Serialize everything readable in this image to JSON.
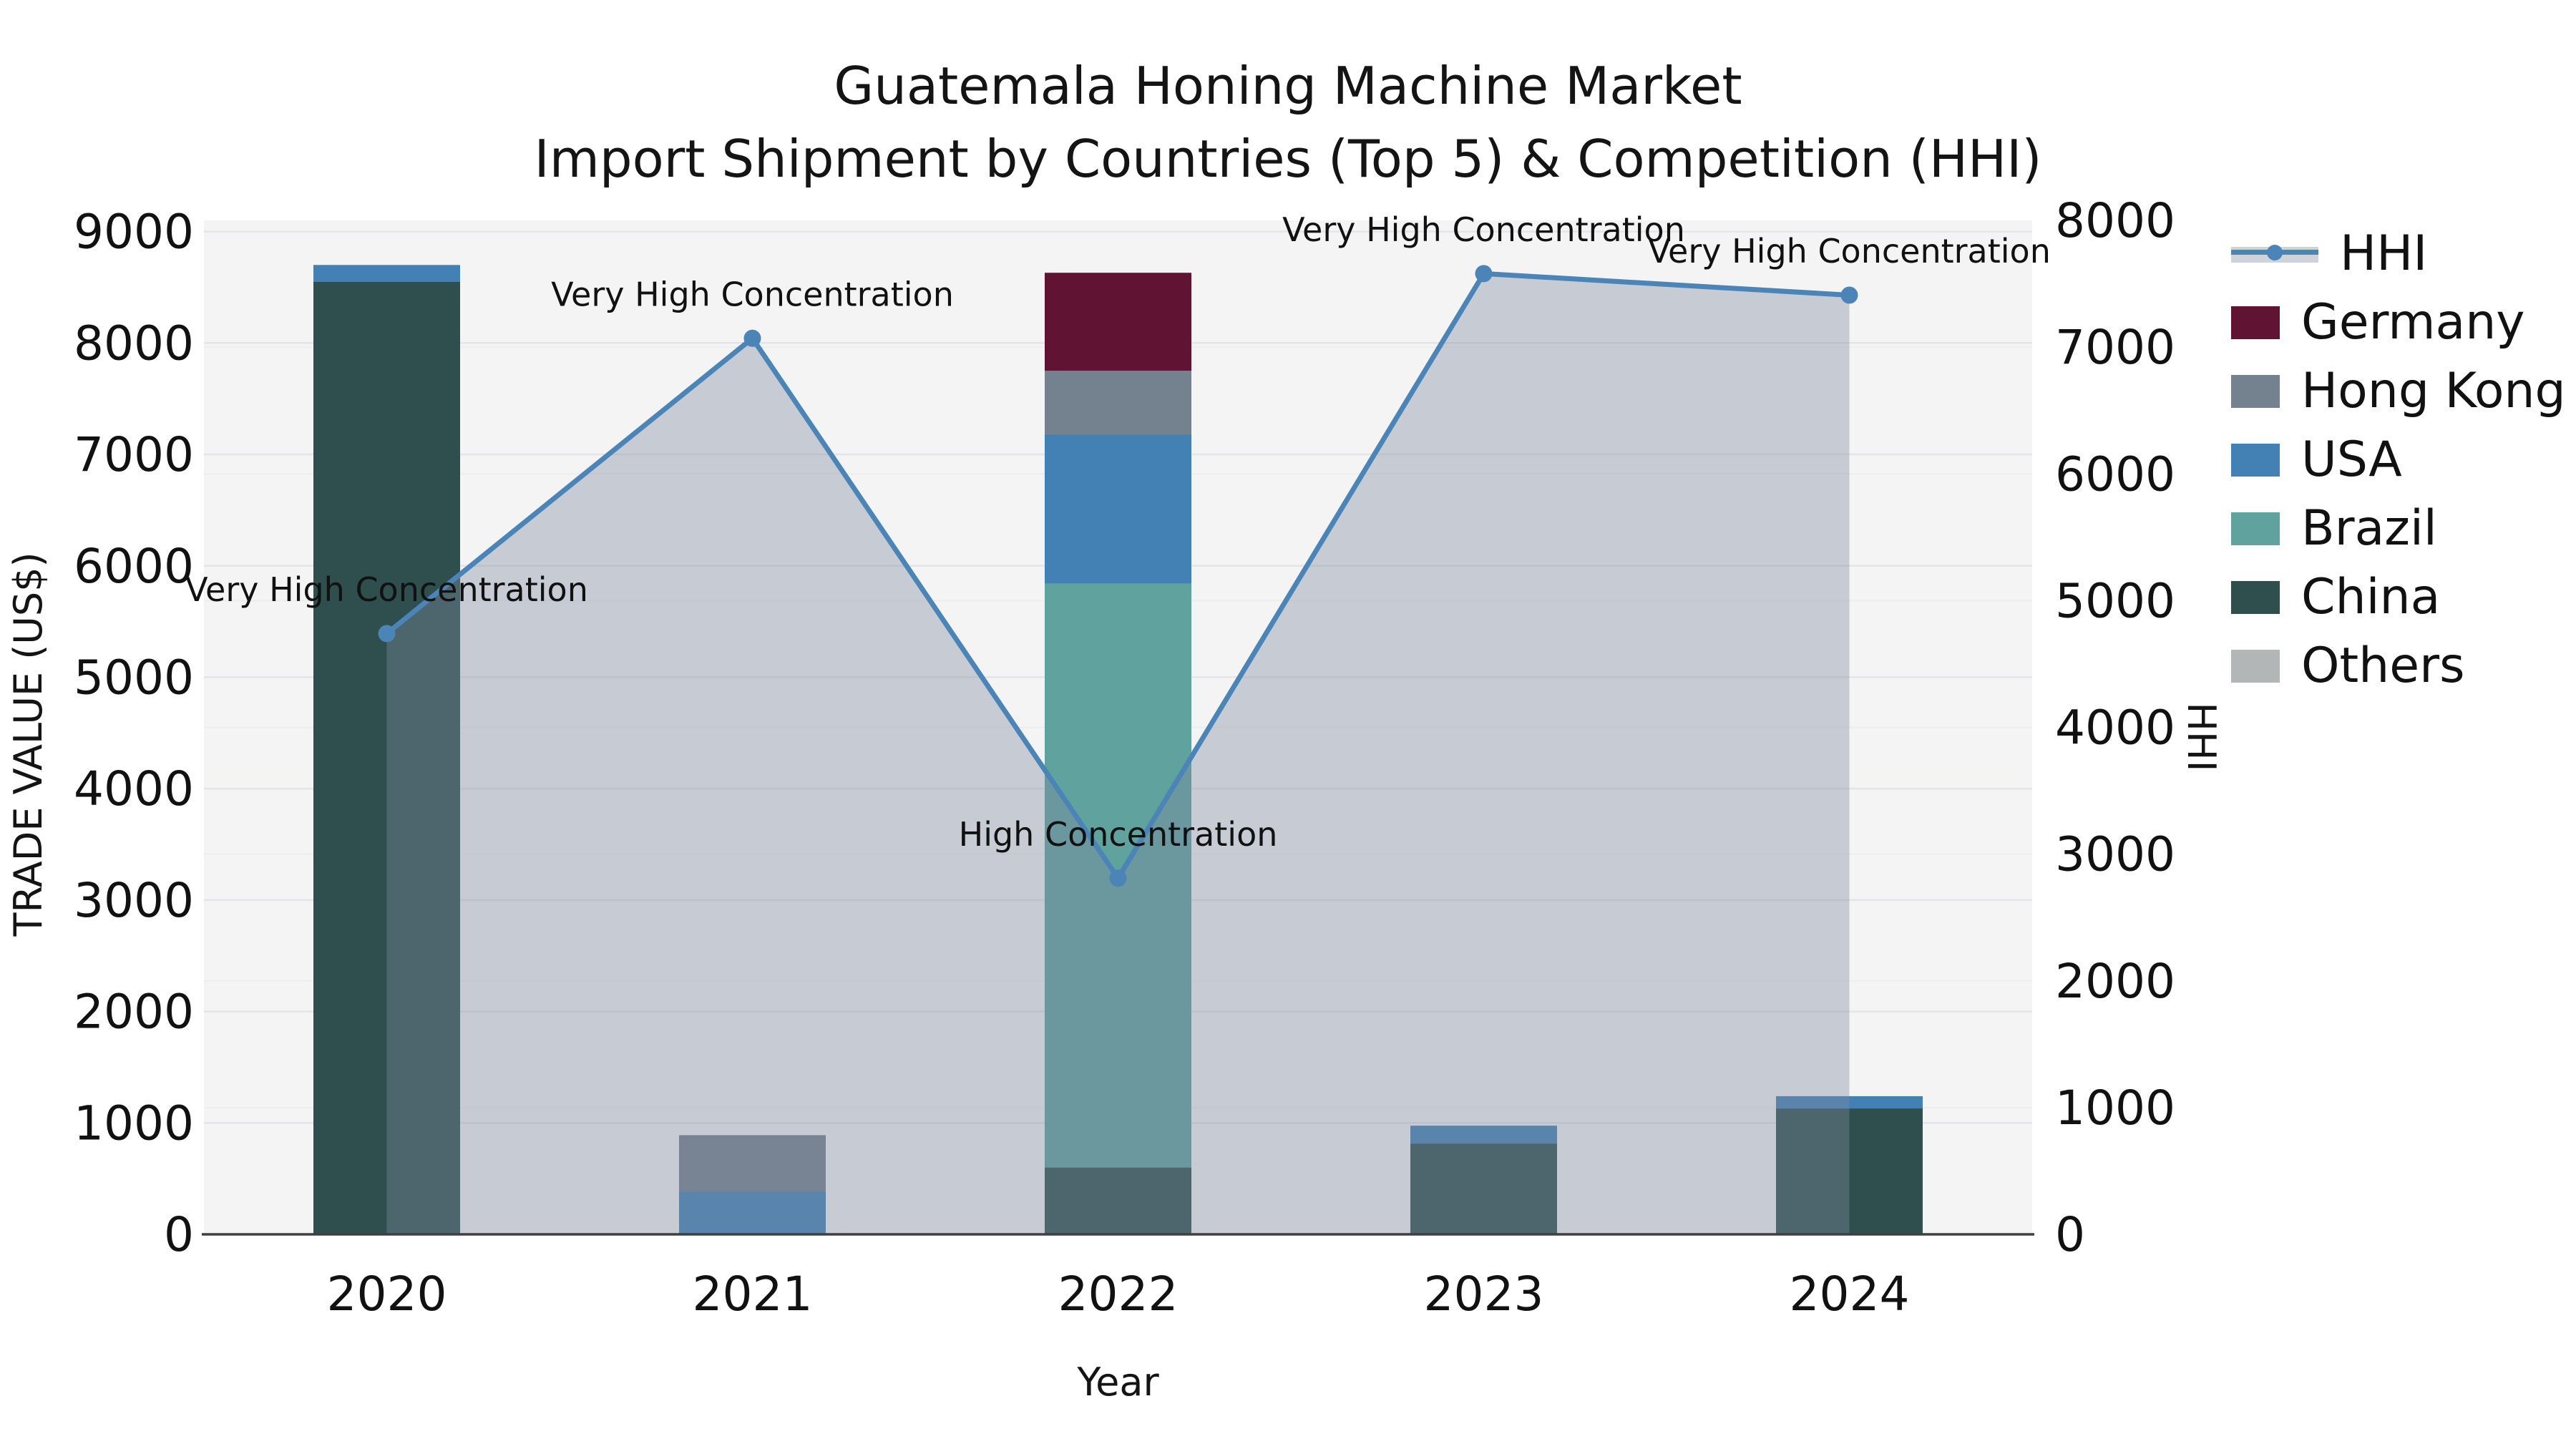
{
  "title": {
    "line1": "Guatemala Honing Machine Market",
    "line2": "Import Shipment by Countries (Top 5) & Competition (HHI)"
  },
  "axes": {
    "x_label": "Year",
    "y_left_label": "TRADE VALUE (US$)",
    "y_right_label": "HHI"
  },
  "colors": {
    "plot_background": "#F4F4F5",
    "grid_major": "#E3E5E8",
    "grid_minor": "#ECEDEF",
    "axis_spine": "#3F3F3F",
    "hhi_line": "#4B84B6",
    "hhi_area_fill": "rgba(127,138,157,0.38)",
    "annotation_text": "#111111"
  },
  "legend": {
    "items": [
      {
        "label": "HHI",
        "type": "line",
        "color": "#4B84B6"
      },
      {
        "label": "Germany",
        "type": "patch",
        "color": "#601333"
      },
      {
        "label": "Hong Kong",
        "type": "patch",
        "color": "#74818F"
      },
      {
        "label": "USA",
        "type": "patch",
        "color": "#4381B4"
      },
      {
        "label": "Brazil",
        "type": "patch",
        "color": "#60A29E"
      },
      {
        "label": "China",
        "type": "patch",
        "color": "#2F4F4F"
      },
      {
        "label": "Others",
        "type": "patch",
        "color": "#B3B6B6"
      }
    ]
  },
  "chart_data": {
    "type": "combo-stacked-bar-line",
    "title": "Guatemala Honing Machine Market — Import Shipment by Countries (Top 5) & Competition (HHI)",
    "categories": [
      "2020",
      "2021",
      "2022",
      "2023",
      "2024"
    ],
    "bar_series": [
      {
        "name": "China",
        "color": "#2F4F4F",
        "values": [
          8550,
          0,
          600,
          815,
          1130
        ]
      },
      {
        "name": "Brazil",
        "color": "#60A29E",
        "values": [
          0,
          0,
          5240,
          0,
          0
        ]
      },
      {
        "name": "USA",
        "color": "#4381B4",
        "values": [
          150,
          385,
          1340,
          160,
          110
        ]
      },
      {
        "name": "Hong Kong",
        "color": "#74818F",
        "values": [
          0,
          505,
          570,
          0,
          0
        ]
      },
      {
        "name": "Germany",
        "color": "#601333",
        "values": [
          0,
          0,
          880,
          0,
          0
        ]
      },
      {
        "name": "Others",
        "color": "#B3B6B6",
        "values": [
          0,
          0,
          0,
          0,
          0
        ]
      }
    ],
    "line_series": {
      "name": "HHI",
      "axis": "right",
      "color": "#4B84B6",
      "values": [
        4740,
        7070,
        2810,
        7580,
        7410
      ]
    },
    "annotations": [
      {
        "category": "2020",
        "text": "Very High Concentration"
      },
      {
        "category": "2021",
        "text": "Very High Concentration"
      },
      {
        "category": "2022",
        "text": "High Concentration"
      },
      {
        "category": "2023",
        "text": "Very High Concentration"
      },
      {
        "category": "2024",
        "text": "Very High Concentration"
      }
    ],
    "y_left": {
      "label": "TRADE VALUE (US$)",
      "min": 0,
      "max": 9100,
      "ticks": [
        0,
        1000,
        2000,
        3000,
        4000,
        5000,
        6000,
        7000,
        8000,
        9000
      ]
    },
    "y_right": {
      "label": "HHI",
      "min": 0,
      "max": 8000,
      "ticks": [
        0,
        1000,
        2000,
        3000,
        4000,
        5000,
        6000,
        7000,
        8000
      ]
    },
    "xlabel": "Year",
    "grid": true,
    "legend_position": "right"
  }
}
